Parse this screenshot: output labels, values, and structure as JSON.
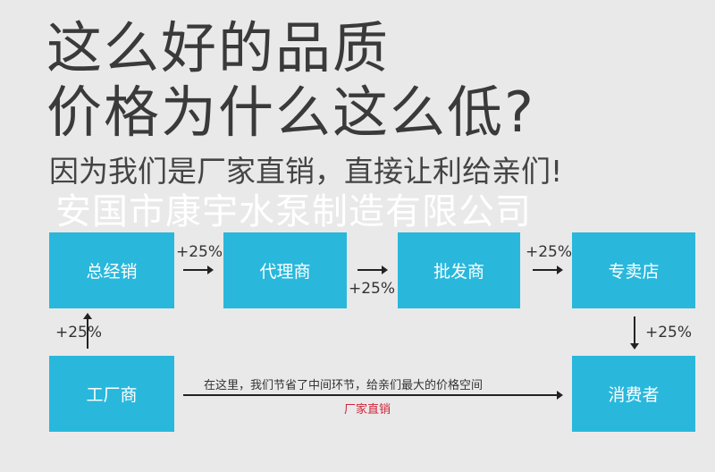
{
  "headline": {
    "line1": "这么好的品质",
    "line2": "价格为什么这么低?"
  },
  "subtitle": "因为我们是厂家直销，直接让利给亲们!",
  "watermark": "安国市康宇水泵制造有限公司",
  "colors": {
    "box": "#29b8dc",
    "background": "#e9e9e9",
    "highlight": "#d0243a"
  },
  "chain": {
    "nodes": [
      "总经销",
      "代理商",
      "批发商",
      "专卖店"
    ],
    "markups": [
      "+25%",
      "+25%",
      "+25%"
    ]
  },
  "factory": {
    "label": "工厂商",
    "markup": "+25%"
  },
  "consumer": {
    "label": "消费者",
    "markup": "+25%"
  },
  "direct": {
    "note": "在这里，我们节省了中间环节，给亲们最大的价格空间",
    "label": "厂家直销"
  }
}
